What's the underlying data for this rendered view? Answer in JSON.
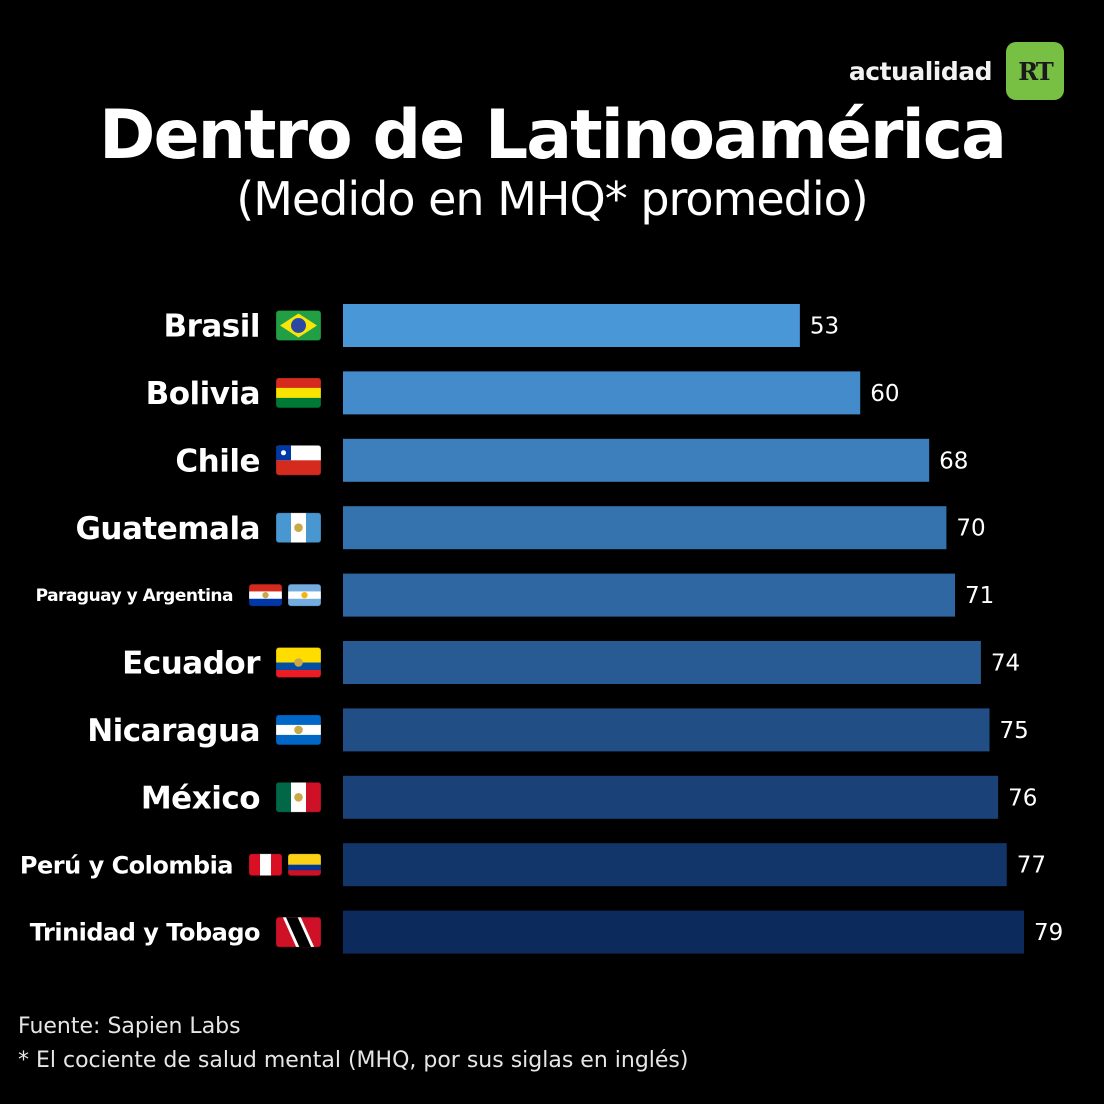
{
  "brand": {
    "text": "actualidad",
    "logo": "RT"
  },
  "chart_data": {
    "type": "bar",
    "orientation": "horizontal",
    "title": "Dentro de Latinoamérica",
    "subtitle": "(Medido en MHQ* promedio)",
    "categories": [
      "Brasil",
      "Bolivia",
      "Chile",
      "Guatemala",
      "Paraguay y Argentina",
      "Ecuador",
      "Nicaragua",
      "México",
      "Perú y Colombia",
      "Trinidad y Tobago"
    ],
    "values": [
      53,
      60,
      68,
      70,
      71,
      74,
      75,
      76,
      77,
      79
    ],
    "flags": [
      [
        "brazil"
      ],
      [
        "bolivia"
      ],
      [
        "chile"
      ],
      [
        "guatemala"
      ],
      [
        "paraguay",
        "argentina"
      ],
      [
        "ecuador"
      ],
      [
        "nicaragua"
      ],
      [
        "mexico"
      ],
      [
        "peru",
        "colombia"
      ],
      [
        "trinidad-tobago"
      ]
    ],
    "xlim": [
      0,
      79
    ],
    "grid": false,
    "bar_color_top": "#4a97d8",
    "bar_color_bottom": "#0c2a5c"
  },
  "footer": {
    "source": "Fuente: Sapien Labs",
    "note": "* El cociente de salud mental (MHQ, por sus siglas en inglés)"
  }
}
